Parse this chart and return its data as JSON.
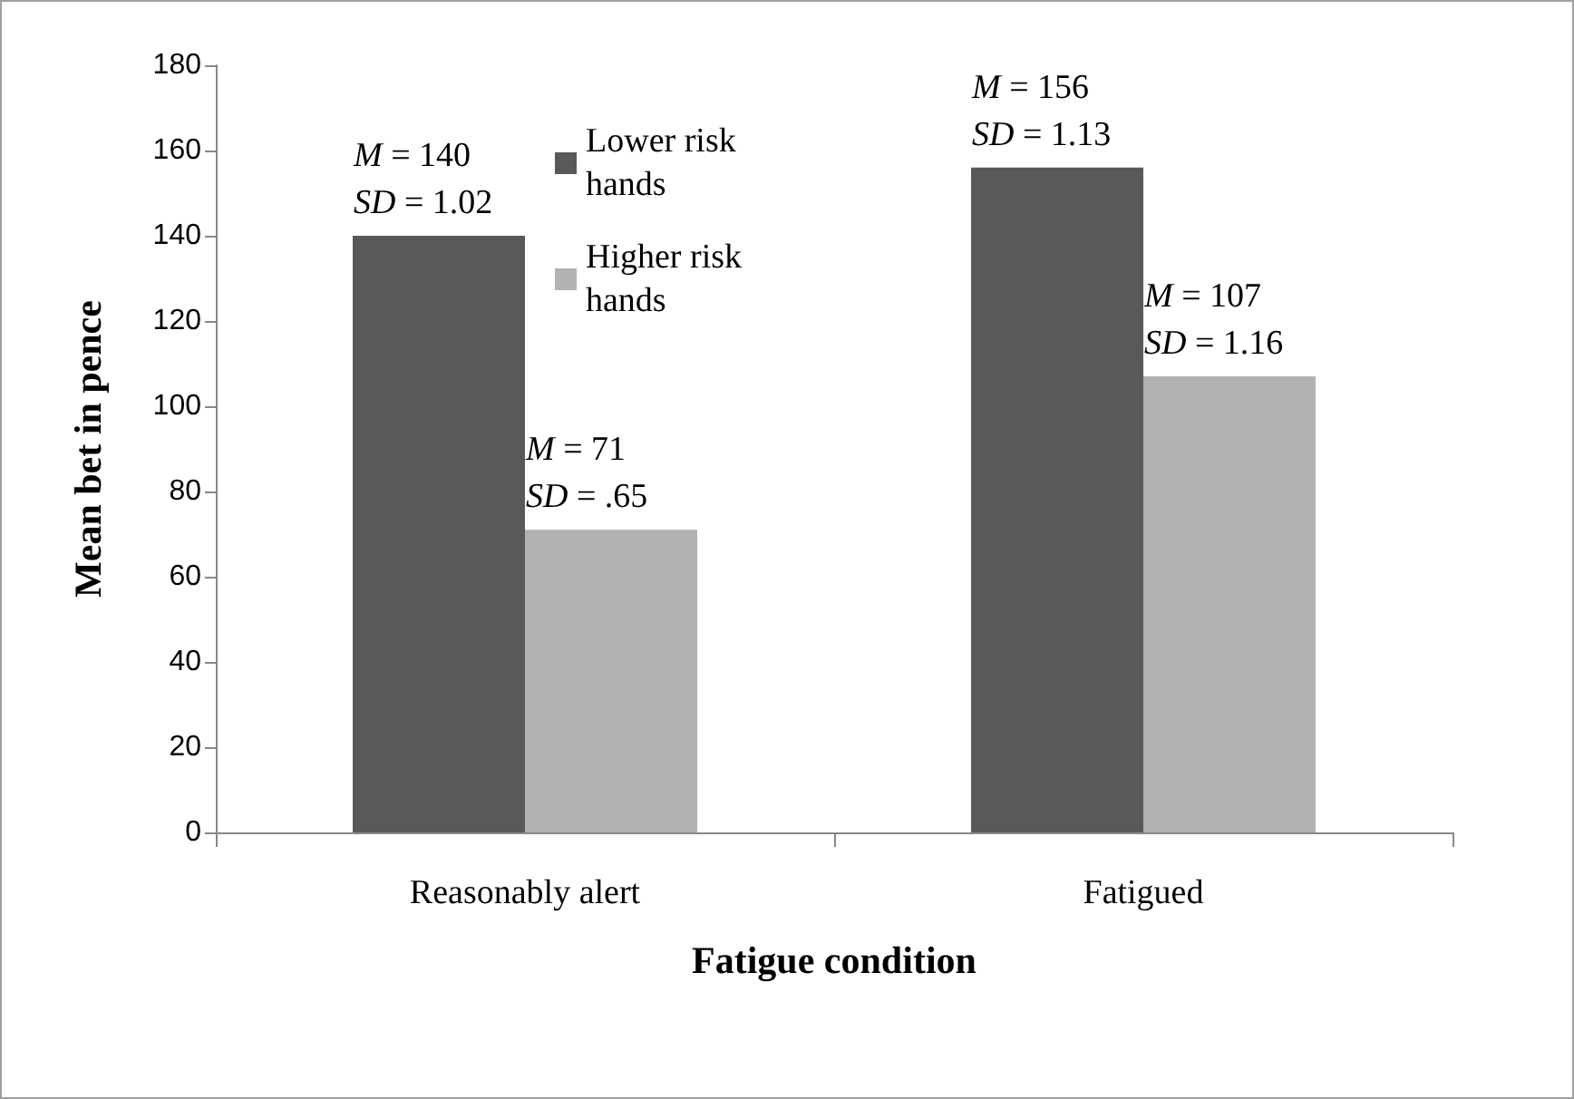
{
  "chart_data": {
    "type": "bar",
    "xlabel": "Fatigue condition",
    "ylabel": "Mean bet in pence",
    "categories": [
      "Reasonably alert",
      "Fatigued"
    ],
    "series": [
      {
        "name": "Lower risk hands",
        "color": "#595959",
        "values": [
          140,
          156
        ],
        "value_labels": [
          "M = 140\nSD = 1.02",
          "M = 156\nSD = 1.13"
        ]
      },
      {
        "name": "Higher risk hands",
        "color": "#b2b2b2",
        "values": [
          71,
          107
        ],
        "value_labels": [
          "M = 71\nSD = .65",
          "M = 107\nSD = 1.16"
        ]
      }
    ],
    "ylim": [
      0,
      180
    ],
    "yticks": [
      0,
      20,
      40,
      60,
      80,
      100,
      120,
      140,
      160,
      180
    ],
    "grid": false,
    "legend": "top"
  }
}
